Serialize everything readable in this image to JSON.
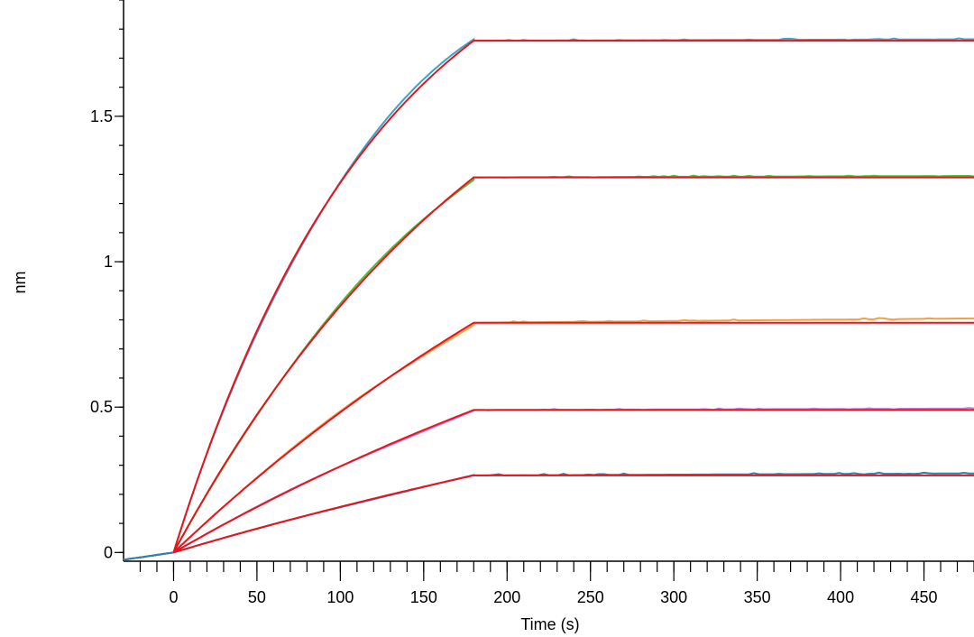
{
  "chart_data": {
    "type": "line",
    "xlabel": "Time (s)",
    "ylabel": "nm",
    "xlim": [
      -30,
      480
    ],
    "ylim": [
      -0.03,
      1.9
    ],
    "x_major_ticks": [
      0,
      50,
      100,
      150,
      200,
      250,
      300,
      350,
      400,
      450
    ],
    "x_tick_labels": [
      "0",
      "50",
      "100",
      "150",
      "200",
      "250",
      "300",
      "350",
      "400",
      "450"
    ],
    "x_minor_step": 10,
    "y_major_ticks": [
      0,
      0.5,
      1,
      1.5
    ],
    "y_tick_labels": [
      "0",
      "0.5",
      "1",
      "1.5"
    ],
    "y_minor_step": 0.1,
    "grid": false,
    "legend": "none",
    "association_end": 180,
    "fit_color": "#e8141c",
    "series": [
      {
        "color": "#3aa4c8",
        "plateau": 1.76,
        "shape": 1.45,
        "observed_plateau": 1.765
      },
      {
        "color": "#4cbc3c",
        "plateau": 1.29,
        "shape": 0.85,
        "observed_plateau": 1.295
      },
      {
        "color": "#f0a040",
        "plateau": 0.79,
        "shape": 0.45,
        "observed_plateau": 0.805
      },
      {
        "color": "#c878d8",
        "plateau": 0.49,
        "shape": 0.4,
        "observed_plateau": 0.495
      },
      {
        "color": "#2a82a8",
        "plateau": 0.265,
        "shape": 0.3,
        "observed_plateau": 0.272
      }
    ]
  }
}
